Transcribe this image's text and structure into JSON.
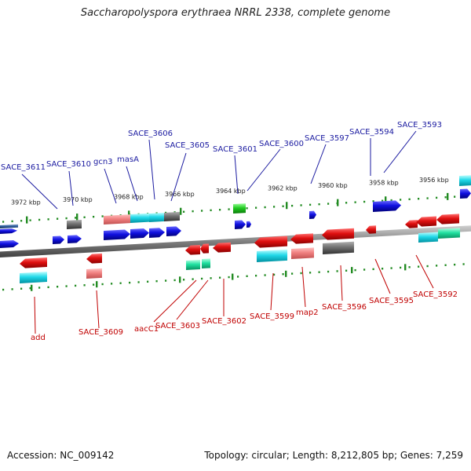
{
  "title": "Saccharopolyspora erythraea NRRL 2338, complete genome",
  "accession": "Accession: NC_009142",
  "stats": "Topology: circular; Length: 8,212,805 bp; Genes: 7,259",
  "scale_labels": [
    "3972 kbp",
    "3970 kbp",
    "3968 kbp",
    "3966 kbp",
    "3964 kbp",
    "3962 kbp",
    "3960 kbp",
    "3958 kbp",
    "3956 kbp"
  ],
  "upper_genes": [
    "SACE_3611",
    "SACE_3610",
    "gcn3",
    "masA",
    "SACE_3606",
    "SACE_3605",
    "SACE_3601",
    "SACE_3600",
    "SACE_3597",
    "SACE_3594",
    "SACE_3593"
  ],
  "lower_genes": [
    "add",
    "SACE_3609",
    "aacC1",
    "SACE_3603",
    "SACE_3602",
    "SACE_3599",
    "map2",
    "SACE_3596",
    "SACE_3595",
    "SACE_3592"
  ],
  "colors": {
    "forward_gene": "#1010e0",
    "reverse_gene": "#e01010",
    "ticks": "#228b22",
    "backbone": "#808080",
    "label_upper": "#1a1aa0",
    "label_lower": "#c00000"
  }
}
